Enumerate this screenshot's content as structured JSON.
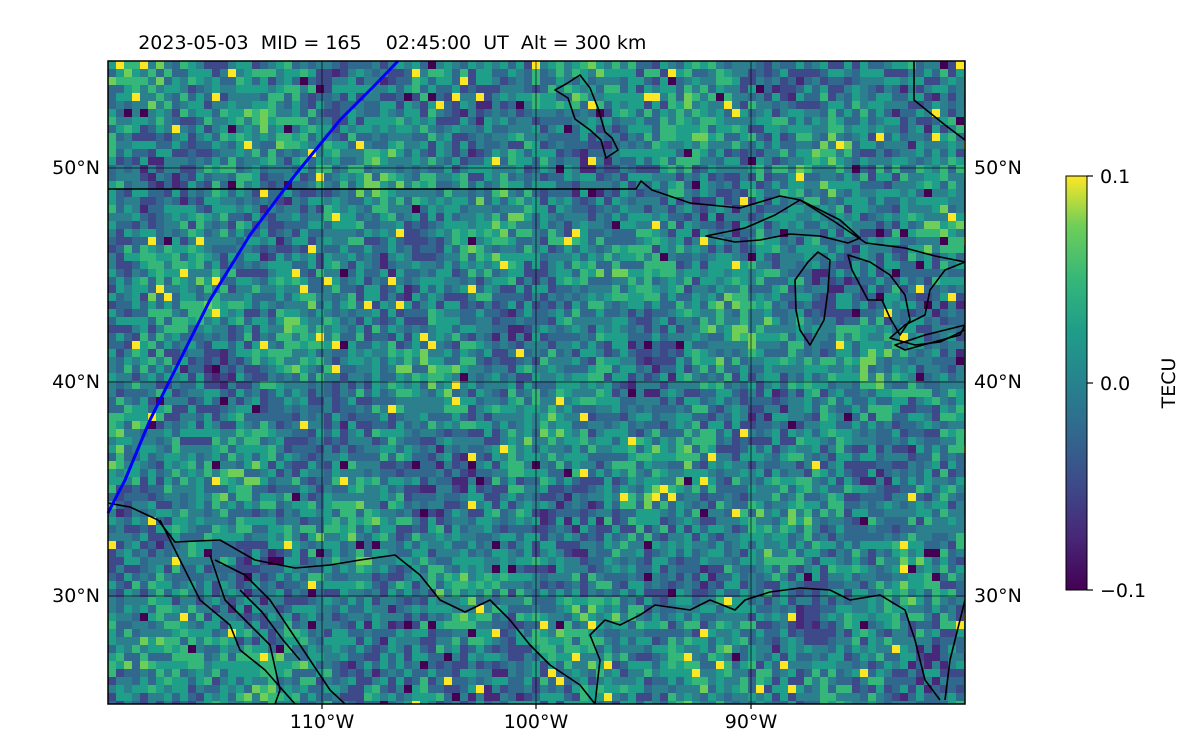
{
  "title": {
    "date": "2023-05-03",
    "mid": "MID = 165",
    "time": "02:45:00",
    "ut": "UT",
    "alt": "Alt = 300 km"
  },
  "axes": {
    "lat_ticks": [
      "50°N",
      "40°N",
      "30°N"
    ],
    "lon_ticks": [
      "110°W",
      "100°W",
      "90°W"
    ],
    "lat_values": [
      50,
      40,
      30
    ],
    "lon_values": [
      -110,
      -100,
      -90
    ],
    "lon_range": [
      -120,
      -80
    ],
    "lat_range": [
      25,
      55
    ],
    "grid": true
  },
  "colorbar": {
    "label": "TECU",
    "ticks": [
      "0.1",
      "0.0",
      "−0.1"
    ],
    "tick_values": [
      0.1,
      0.0,
      -0.1
    ],
    "range": [
      -0.1,
      0.1
    ],
    "colormap": "viridis"
  },
  "overlay": {
    "track_color": "#0000ff",
    "coastline_color": "#000000"
  }
}
